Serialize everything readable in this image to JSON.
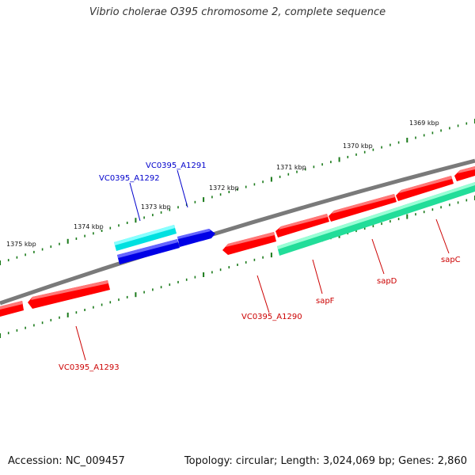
{
  "title": "Vibrio cholerae O395 chromosome 2, complete sequence",
  "footer": {
    "accession": "Accession: NC_009457",
    "topology": "Topology: circular; Length: 3,024,069 bp; Genes: 2,860"
  },
  "colors": {
    "backbone": "#7a7a7a",
    "tick": "#1a7a1a",
    "red_gene": "#ff0000",
    "red_gene_light": "#ff7777",
    "blue_gene": "#0000e6",
    "blue_gene_light": "#6666ff",
    "cyan_gene": "#00e0e0",
    "cyan_gene_light": "#88ffff",
    "green_gene": "#22dd99",
    "green_gene_light": "#99ffd6",
    "label_red": "#cc0000",
    "label_blue": "#0000cc"
  },
  "kbp_ticks": [
    "1375 kbp",
    "1374 kbp",
    "1373 kbp",
    "1372 kbp",
    "1371 kbp",
    "1370 kbp",
    "1369 kbp"
  ],
  "genes": [
    {
      "name": "VC0395_A1291",
      "strand": "plus",
      "color": "blue"
    },
    {
      "name": "VC0395_A1292",
      "strand": "plus",
      "color": "cyan"
    },
    {
      "name": "VC0395_A1290",
      "strand": "minus",
      "color": "red"
    },
    {
      "name": "sapF",
      "strand": "minus",
      "color": "red"
    },
    {
      "name": "sapD",
      "strand": "minus",
      "color": "red"
    },
    {
      "name": "sapC",
      "strand": "minus",
      "color": "red"
    },
    {
      "name": "VC0395_A1293",
      "strand": "minus",
      "color": "red"
    }
  ]
}
